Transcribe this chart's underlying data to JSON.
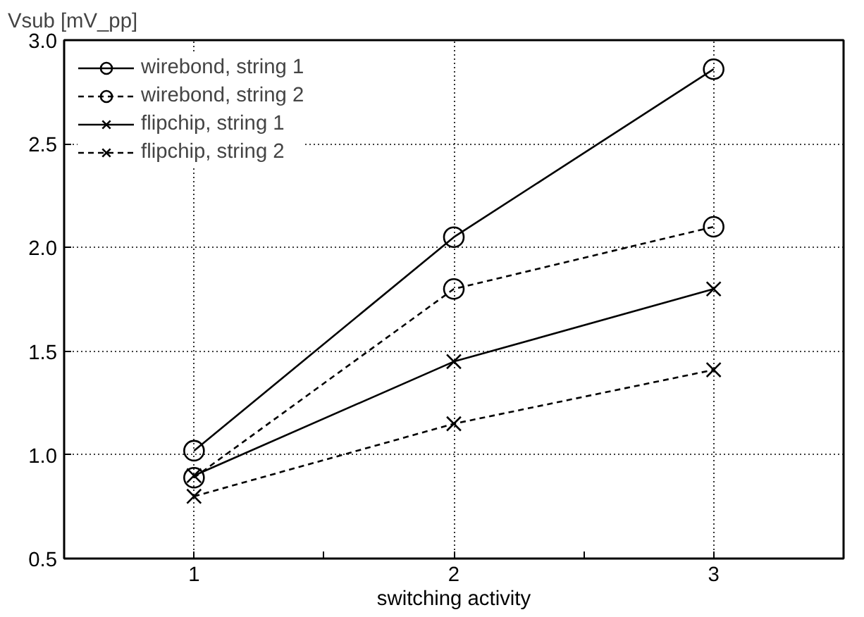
{
  "chart_data": {
    "type": "line",
    "xlabel": "switching activity",
    "ylabel": "Vsub [mV_pp]",
    "x": [
      1,
      2,
      3
    ],
    "xlim": [
      0.5,
      3.5
    ],
    "ylim": [
      0.5,
      3.0
    ],
    "xticks": [
      1,
      {
        "value": 1.5,
        "label": null
      },
      2,
      {
        "value": 2.5,
        "label": null
      },
      3
    ],
    "yticks": [
      {
        "value": 0.5,
        "label": "0.5"
      },
      {
        "value": 1,
        "label": "1.0"
      },
      {
        "value": 1.5,
        "label": "1.5"
      },
      {
        "value": 2,
        "label": "2.0"
      },
      {
        "value": 2.5,
        "label": "2.5"
      },
      {
        "value": 3,
        "label": "3.0"
      }
    ],
    "grid": true,
    "legend": "top left",
    "series": [
      {
        "name": "wirebond, string 1",
        "color": "#000000",
        "values": [
          1.02,
          2.05,
          2.86
        ],
        "marker": "circle",
        "line_style": "solid"
      },
      {
        "name": "wirebond, string 2",
        "color": "#000000",
        "values": [
          0.89,
          1.8,
          2.1
        ],
        "marker": "circle",
        "line_style": "dashed"
      },
      {
        "name": "flipchip, string 1",
        "color": "#000000",
        "values": [
          0.9,
          1.45,
          1.8
        ],
        "marker": "cross",
        "line_style": "solid"
      },
      {
        "name": "flipchip, string 2",
        "color": "#000000",
        "values": [
          0.8,
          1.15,
          1.41
        ],
        "marker": "cross",
        "line_style": "dashed"
      }
    ]
  }
}
